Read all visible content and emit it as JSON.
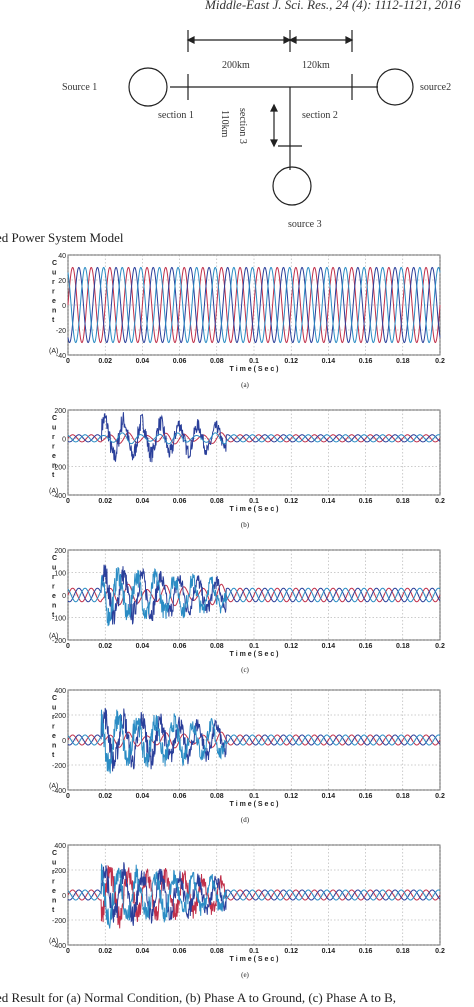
{
  "header": "Middle-East J. Sci. Res., 24 (4): 1112-1121, 2016",
  "diagram": {
    "source1": "Source 1",
    "source2": "source2",
    "source3": "source 3",
    "section1": "section 1",
    "section2": "section 2",
    "section3": "section 3",
    "dist1": "200km",
    "dist2": "120km",
    "dist3": "110km"
  },
  "figure_caption_top": "ed Power System Model",
  "figure_caption_bottom": "ed Result for (a) Normal Condition, (b) Phase A to Ground, (c) Phase A to B,",
  "colors": {
    "phase_a": "#c0304a",
    "phase_b": "#2a3f9a",
    "phase_c": "#2b8cc4"
  },
  "chart_data": [
    {
      "type": "line",
      "label": "(a)",
      "xlabel": "T i m e ( S e c )",
      "ylabel": "C u r r e n t (A)",
      "xlim": [
        0,
        0.2
      ],
      "ylim": [
        -40,
        40
      ],
      "xticks": [
        "0",
        "0.02",
        "0.04",
        "0.06",
        "0.08",
        "0.1",
        "0.12",
        "0.14",
        "0.16",
        "0.18",
        "0.2"
      ],
      "yticks": [
        "40",
        "20",
        "0",
        "-20",
        "-40"
      ],
      "grid": true,
      "fault": null,
      "series": [
        {
          "amplitude": 30,
          "phase_deg": 0,
          "color": "#c0304a"
        },
        {
          "amplitude": 30,
          "phase_deg": -120,
          "color": "#2a3f9a"
        },
        {
          "amplitude": 30,
          "phase_deg": 120,
          "color": "#2b8cc4"
        }
      ]
    },
    {
      "type": "line",
      "label": "(b)",
      "xlabel": "T i m e ( S e c )",
      "ylabel": "C u r r e n t (A)",
      "xlim": [
        0,
        0.2
      ],
      "ylim": [
        -400,
        200
      ],
      "xticks": [
        "0",
        "0.02",
        "0.04",
        "0.06",
        "0.08",
        "0.1",
        "0.12",
        "0.14",
        "0.16",
        "0.18",
        "0.2"
      ],
      "yticks": [
        "200",
        "0",
        "-200",
        "-400"
      ],
      "grid": true,
      "fault": {
        "start": 0.018,
        "end": 0.085,
        "peak": 220,
        "trough": -330,
        "faulted_series": [
          1
        ]
      },
      "series": [
        {
          "amplitude": 25,
          "phase_deg": 0,
          "color": "#c0304a"
        },
        {
          "amplitude": 25,
          "phase_deg": -120,
          "color": "#2a3f9a"
        },
        {
          "amplitude": 25,
          "phase_deg": 120,
          "color": "#2b8cc4"
        }
      ]
    },
    {
      "type": "line",
      "label": "(c)",
      "xlabel": "T i m e ( S e c )",
      "ylabel": "C u r r e n t (A)",
      "xlim": [
        0,
        0.2
      ],
      "ylim": [
        -200,
        200
      ],
      "xticks": [
        "0",
        "0.02",
        "0.04",
        "0.06",
        "0.08",
        "0.1",
        "0.12",
        "0.14",
        "0.16",
        "0.18",
        "0.2"
      ],
      "yticks": [
        "200",
        "100",
        "0",
        "-100",
        "-200"
      ],
      "grid": true,
      "fault": {
        "start": 0.018,
        "end": 0.085,
        "peak": 190,
        "trough": -200,
        "faulted_series": [
          1,
          2
        ]
      },
      "series": [
        {
          "amplitude": 30,
          "phase_deg": 0,
          "color": "#c0304a"
        },
        {
          "amplitude": 30,
          "phase_deg": -120,
          "color": "#2a3f9a"
        },
        {
          "amplitude": 30,
          "phase_deg": 120,
          "color": "#2b8cc4"
        }
      ]
    },
    {
      "type": "line",
      "label": "(d)",
      "xlabel": "T i m e ( S e c )",
      "ylabel": "C u r r e n t (A)",
      "xlim": [
        0,
        0.2
      ],
      "ylim": [
        -400,
        400
      ],
      "xticks": [
        "0",
        "0.02",
        "0.04",
        "0.06",
        "0.08",
        "0.1",
        "0.12",
        "0.14",
        "0.16",
        "0.18",
        "0.2"
      ],
      "yticks": [
        "400",
        "200",
        "0",
        "-200",
        "-400"
      ],
      "grid": true,
      "fault": {
        "start": 0.018,
        "end": 0.085,
        "peak": 380,
        "trough": -380,
        "faulted_series": [
          1,
          2
        ]
      },
      "series": [
        {
          "amplitude": 40,
          "phase_deg": 0,
          "color": "#c0304a"
        },
        {
          "amplitude": 40,
          "phase_deg": -120,
          "color": "#2a3f9a"
        },
        {
          "amplitude": 40,
          "phase_deg": 120,
          "color": "#2b8cc4"
        }
      ]
    },
    {
      "type": "line",
      "label": "(e)",
      "xlabel": "T i m e ( S e c )",
      "ylabel": "C u r r e n t (A)",
      "xlim": [
        0,
        0.2
      ],
      "ylim": [
        -400,
        400
      ],
      "xticks": [
        "0",
        "0.02",
        "0.04",
        "0.06",
        "0.08",
        "0.1",
        "0.12",
        "0.14",
        "0.16",
        "0.18",
        "0.2"
      ],
      "yticks": [
        "400",
        "200",
        "0",
        "-200",
        "-400"
      ],
      "grid": true,
      "fault": {
        "start": 0.018,
        "end": 0.085,
        "peak": 370,
        "trough": -380,
        "faulted_series": [
          0,
          1,
          2
        ]
      },
      "series": [
        {
          "amplitude": 40,
          "phase_deg": 0,
          "color": "#c0304a"
        },
        {
          "amplitude": 40,
          "phase_deg": -120,
          "color": "#2a3f9a"
        },
        {
          "amplitude": 40,
          "phase_deg": 120,
          "color": "#2b8cc4"
        }
      ]
    }
  ]
}
